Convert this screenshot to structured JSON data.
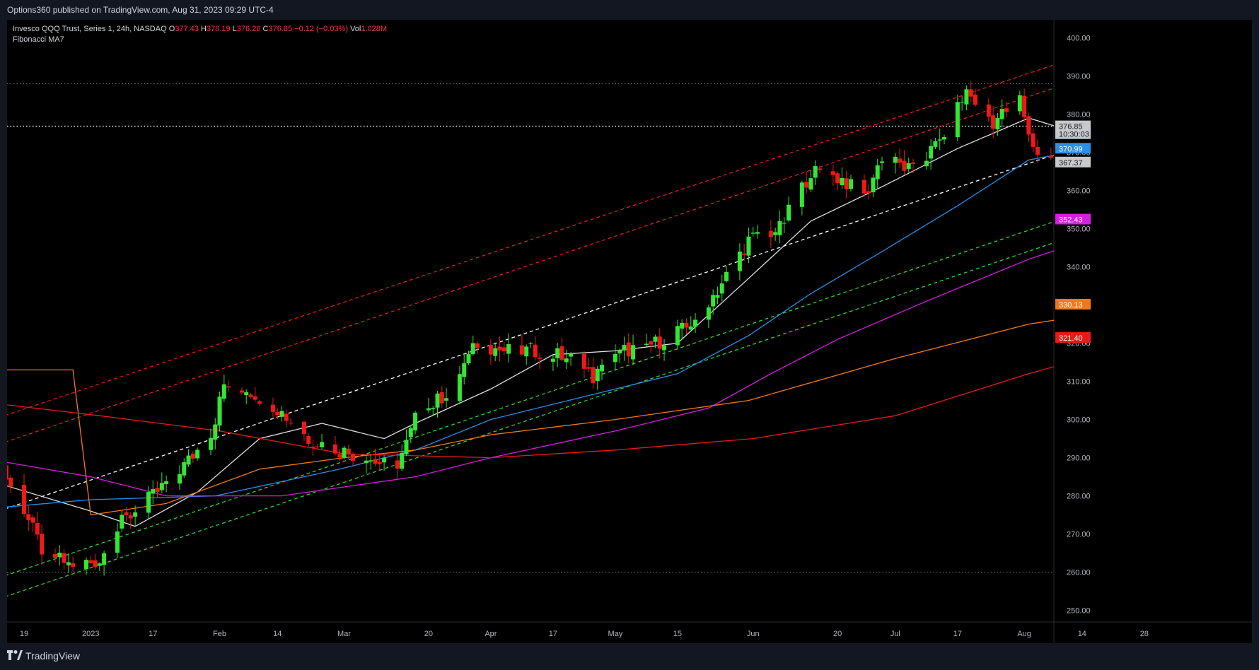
{
  "header": {
    "published": "Options360 published on TradingView.com, Aug 31, 2023 09:29 UTC-4"
  },
  "legend": {
    "symbol": "Invesco QQQ Trust, Series 1, 24h, NASDAQ",
    "o_label": "O",
    "o_value": "377.43",
    "h_label": "H",
    "h_value": "378.19",
    "l_label": "L",
    "l_value": "376.26",
    "c_label": "C",
    "c_value": "376.85",
    "change": "−0.12 (−0.03%)",
    "vol_label": "Vol",
    "vol_value": "1.028M",
    "indicator": "Fibonacci MA7"
  },
  "footer": {
    "brand": "TradingView"
  },
  "colors": {
    "up": "#33e633",
    "down": "#f01818",
    "background": "#000000",
    "ma_white": "#e0e0e0",
    "ma_blue": "#2a8fe8",
    "ma_magenta": "#d81fe0",
    "ma_orange": "#f07a1a",
    "ma_red": "#e81a1a"
  },
  "chart_data": {
    "type": "candlestick",
    "ylim": [
      246,
      404
    ],
    "x_ticks": [
      {
        "label": "19",
        "date": "2022-12-19"
      },
      {
        "label": "2023",
        "date": "2023-01-03"
      },
      {
        "label": "17",
        "date": "2023-01-17"
      },
      {
        "label": "Feb",
        "date": "2023-02-01"
      },
      {
        "label": "14",
        "date": "2023-02-14"
      },
      {
        "label": "Mar",
        "date": "2023-03-01"
      },
      {
        "label": "20",
        "date": "2023-03-20"
      },
      {
        "label": "Apr",
        "date": "2023-04-03"
      },
      {
        "label": "17",
        "date": "2023-04-17"
      },
      {
        "label": "May",
        "date": "2023-05-01"
      },
      {
        "label": "15",
        "date": "2023-05-15"
      },
      {
        "label": "Jun",
        "date": "2023-06-01"
      },
      {
        "label": "20",
        "date": "2023-06-20"
      },
      {
        "label": "Jul",
        "date": "2023-07-03"
      },
      {
        "label": "17",
        "date": "2023-07-17"
      },
      {
        "label": "Aug",
        "date": "2023-08-01"
      },
      {
        "label": "14",
        "date": "2023-08-14"
      },
      {
        "label": "28",
        "date": "2023-08-28"
      }
    ],
    "y_ticks": [
      250,
      260,
      270,
      280,
      290,
      300,
      310,
      320,
      330,
      340,
      350,
      360,
      370,
      380,
      390,
      400
    ],
    "price_labels": [
      {
        "value": 376.85,
        "text": "376.85",
        "countdown": "10:30:03",
        "color": "#d1d4dc"
      },
      {
        "value": 370.99,
        "text": "370.99",
        "color": "#2a8fe8"
      },
      {
        "value": 367.37,
        "text": "367.37",
        "color": "#ffffff"
      },
      {
        "value": 352.43,
        "text": "352.43",
        "color": "#d81fe0"
      },
      {
        "value": 330.13,
        "text": "330.13",
        "color": "#f07a1a"
      },
      {
        "value": 321.4,
        "text": "321.40",
        "color": "#e81a1a"
      }
    ],
    "anchor_points": [
      [
        "2022-12-14",
        287
      ],
      [
        "2022-12-19",
        276
      ],
      [
        "2022-12-23",
        266
      ],
      [
        "2022-12-29",
        262
      ],
      [
        "2023-01-05",
        263
      ],
      [
        "2023-01-10",
        273
      ],
      [
        "2023-01-17",
        280
      ],
      [
        "2023-01-24",
        288
      ],
      [
        "2023-01-30",
        296
      ],
      [
        "2023-02-02",
        309
      ],
      [
        "2023-02-07",
        308
      ],
      [
        "2023-02-14",
        303
      ],
      [
        "2023-02-21",
        295
      ],
      [
        "2023-02-28",
        292
      ],
      [
        "2023-03-08",
        289
      ],
      [
        "2023-03-13",
        287
      ],
      [
        "2023-03-17",
        300
      ],
      [
        "2023-03-24",
        307
      ],
      [
        "2023-03-31",
        320
      ],
      [
        "2023-04-06",
        318
      ],
      [
        "2023-04-14",
        318
      ],
      [
        "2023-04-21",
        316
      ],
      [
        "2023-04-26",
        311
      ],
      [
        "2023-05-03",
        318
      ],
      [
        "2023-05-10",
        320
      ],
      [
        "2023-05-17",
        324
      ],
      [
        "2023-05-24",
        334
      ],
      [
        "2023-05-31",
        347
      ],
      [
        "2023-06-07",
        350
      ],
      [
        "2023-06-14",
        365
      ],
      [
        "2023-06-21",
        363
      ],
      [
        "2023-06-26",
        358
      ],
      [
        "2023-06-30",
        369
      ],
      [
        "2023-07-07",
        365
      ],
      [
        "2023-07-13",
        373
      ],
      [
        "2023-07-19",
        386
      ],
      [
        "2023-07-25",
        378
      ],
      [
        "2023-07-31",
        384
      ],
      [
        "2023-08-03",
        371
      ],
      [
        "2023-08-09",
        368
      ],
      [
        "2023-08-15",
        367
      ],
      [
        "2023-08-18",
        358
      ],
      [
        "2023-08-22",
        363
      ],
      [
        "2023-08-24",
        360
      ],
      [
        "2023-08-29",
        372
      ],
      [
        "2023-08-31",
        376.85
      ]
    ],
    "moving_averages": [
      {
        "color": "#e0e0e0",
        "points": [
          [
            "2022-12-14",
            283
          ],
          [
            "2023-01-03",
            276
          ],
          [
            "2023-01-13",
            272
          ],
          [
            "2023-01-27",
            281
          ],
          [
            "2023-02-10",
            295
          ],
          [
            "2023-02-24",
            299
          ],
          [
            "2023-03-10",
            295
          ],
          [
            "2023-03-17",
            299
          ],
          [
            "2023-04-03",
            308
          ],
          [
            "2023-04-17",
            317
          ],
          [
            "2023-05-01",
            318
          ],
          [
            "2023-05-15",
            320
          ],
          [
            "2023-05-31",
            337
          ],
          [
            "2023-06-14",
            352
          ],
          [
            "2023-06-30",
            361
          ],
          [
            "2023-07-17",
            371
          ],
          [
            "2023-08-02",
            379
          ],
          [
            "2023-08-16",
            374
          ],
          [
            "2023-08-31",
            367.37
          ]
        ]
      },
      {
        "color": "#2a8fe8",
        "points": [
          [
            "2022-12-14",
            277
          ],
          [
            "2023-01-03",
            279
          ],
          [
            "2023-01-31",
            280
          ],
          [
            "2023-02-28",
            287
          ],
          [
            "2023-03-17",
            292
          ],
          [
            "2023-04-03",
            300
          ],
          [
            "2023-04-17",
            304
          ],
          [
            "2023-05-01",
            308
          ],
          [
            "2023-05-15",
            312
          ],
          [
            "2023-05-31",
            322
          ],
          [
            "2023-06-14",
            333
          ],
          [
            "2023-06-30",
            344
          ],
          [
            "2023-07-17",
            356
          ],
          [
            "2023-08-02",
            368
          ],
          [
            "2023-08-16",
            371
          ],
          [
            "2023-08-31",
            370.99
          ]
        ]
      },
      {
        "color": "#d81fe0",
        "points": [
          [
            "2022-12-14",
            289
          ],
          [
            "2023-01-03",
            285
          ],
          [
            "2023-01-20",
            280
          ],
          [
            "2023-02-15",
            280
          ],
          [
            "2023-03-17",
            285
          ],
          [
            "2023-04-03",
            290
          ],
          [
            "2023-05-01",
            297
          ],
          [
            "2023-05-22",
            303
          ],
          [
            "2023-06-05",
            312
          ],
          [
            "2023-06-20",
            321
          ],
          [
            "2023-07-10",
            331
          ],
          [
            "2023-08-02",
            342
          ],
          [
            "2023-08-20",
            349
          ],
          [
            "2023-08-31",
            352.43
          ]
        ]
      },
      {
        "color": "#f07a1a",
        "points": [
          [
            "2022-12-14",
            313
          ],
          [
            "2022-12-30",
            313
          ],
          [
            "2023-01-03",
            275
          ],
          [
            "2023-01-20",
            278
          ],
          [
            "2023-02-10",
            287
          ],
          [
            "2023-03-01",
            290
          ],
          [
            "2023-03-17",
            292
          ],
          [
            "2023-04-03",
            296
          ],
          [
            "2023-05-01",
            300
          ],
          [
            "2023-05-31",
            305
          ],
          [
            "2023-07-03",
            316
          ],
          [
            "2023-08-02",
            325
          ],
          [
            "2023-08-31",
            330.13
          ]
        ]
      },
      {
        "color": "#e81a1a",
        "points": [
          [
            "2022-12-14",
            304
          ],
          [
            "2023-01-05",
            301
          ],
          [
            "2023-02-01",
            297
          ],
          [
            "2023-03-01",
            291
          ],
          [
            "2023-04-03",
            290
          ],
          [
            "2023-05-01",
            292
          ],
          [
            "2023-06-01",
            295
          ],
          [
            "2023-07-03",
            301
          ],
          [
            "2023-08-02",
            312
          ],
          [
            "2023-08-31",
            321.4
          ]
        ]
      }
    ],
    "channel_lines": [
      {
        "color": "#ffffff",
        "points": [
          [
            "2022-12-12",
            275.5
          ],
          [
            "2023-08-31",
            378.5
          ]
        ]
      },
      {
        "color": "#e81a1a",
        "points": [
          [
            "2022-12-12",
            293
          ],
          [
            "2023-08-31",
            396
          ]
        ]
      },
      {
        "color": "#e81a1a",
        "points": [
          [
            "2022-12-12",
            300
          ],
          [
            "2023-08-31",
            402
          ]
        ]
      },
      {
        "color": "#33d633",
        "points": [
          [
            "2022-12-12",
            258
          ],
          [
            "2023-08-31",
            361
          ]
        ]
      },
      {
        "color": "#33d633",
        "points": [
          [
            "2022-12-12",
            252.5
          ],
          [
            "2023-08-31",
            355.5
          ]
        ]
      }
    ],
    "horizontal_lines": [
      {
        "value": 388,
        "style": "dotted",
        "color": "#787b86"
      },
      {
        "value": 376.85,
        "style": "dotted",
        "color": "#ffffff"
      },
      {
        "value": 260,
        "style": "dotted",
        "color": "#787b86"
      }
    ]
  }
}
